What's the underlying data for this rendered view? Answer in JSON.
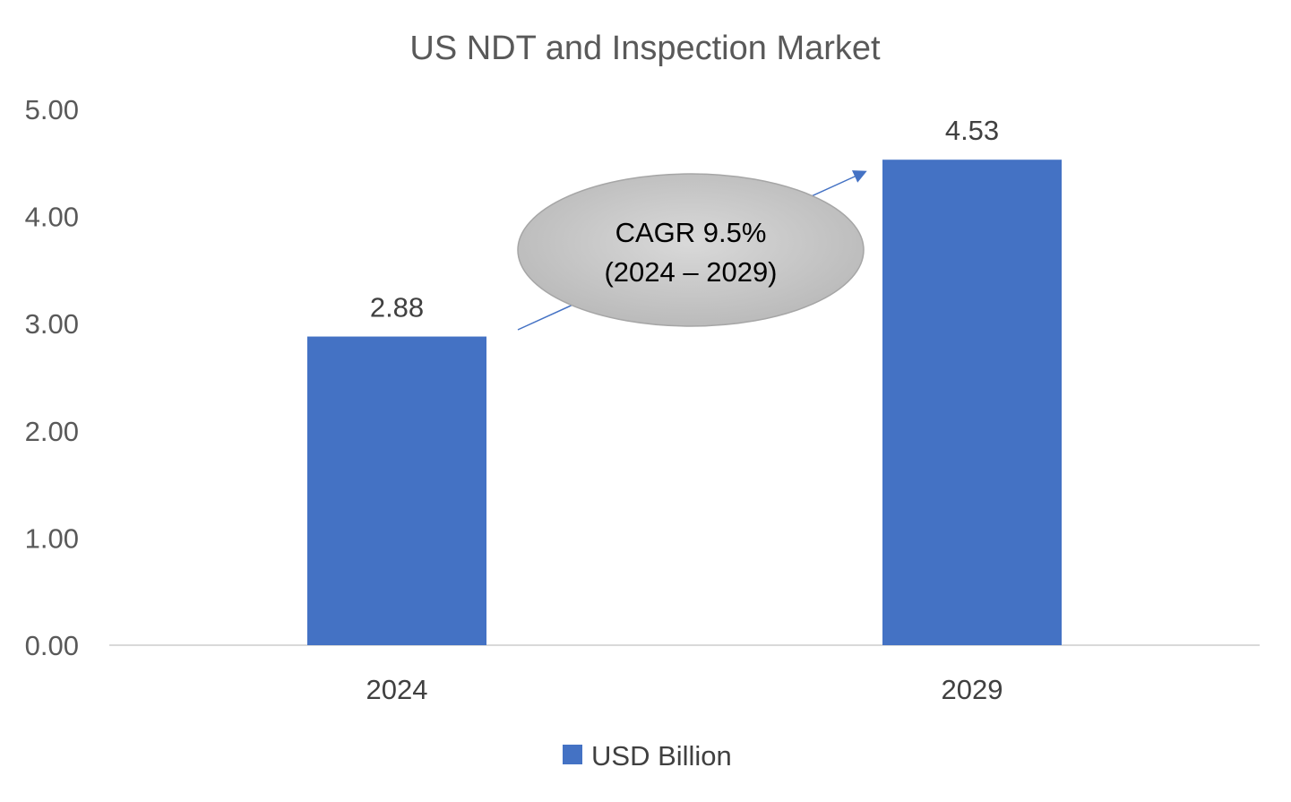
{
  "chart_data": {
    "type": "bar",
    "title": "US NDT and Inspection Market",
    "categories": [
      "2024",
      "2029"
    ],
    "series": [
      {
        "name": "USD Billion",
        "values": [
          2.88,
          4.53
        ],
        "color": "#4472C4"
      }
    ],
    "data_labels": [
      "2.88",
      "4.53"
    ],
    "ylim": [
      0,
      5
    ],
    "yticks": [
      "0.00",
      "1.00",
      "2.00",
      "3.00",
      "4.00",
      "5.00"
    ],
    "grid": false,
    "legend_position": "bottom",
    "annotation": {
      "line1": "CAGR 9.5%",
      "line2": "(2024 – 2029)",
      "fill": "#C8C8C8",
      "arrow_color": "#4472C4"
    }
  }
}
